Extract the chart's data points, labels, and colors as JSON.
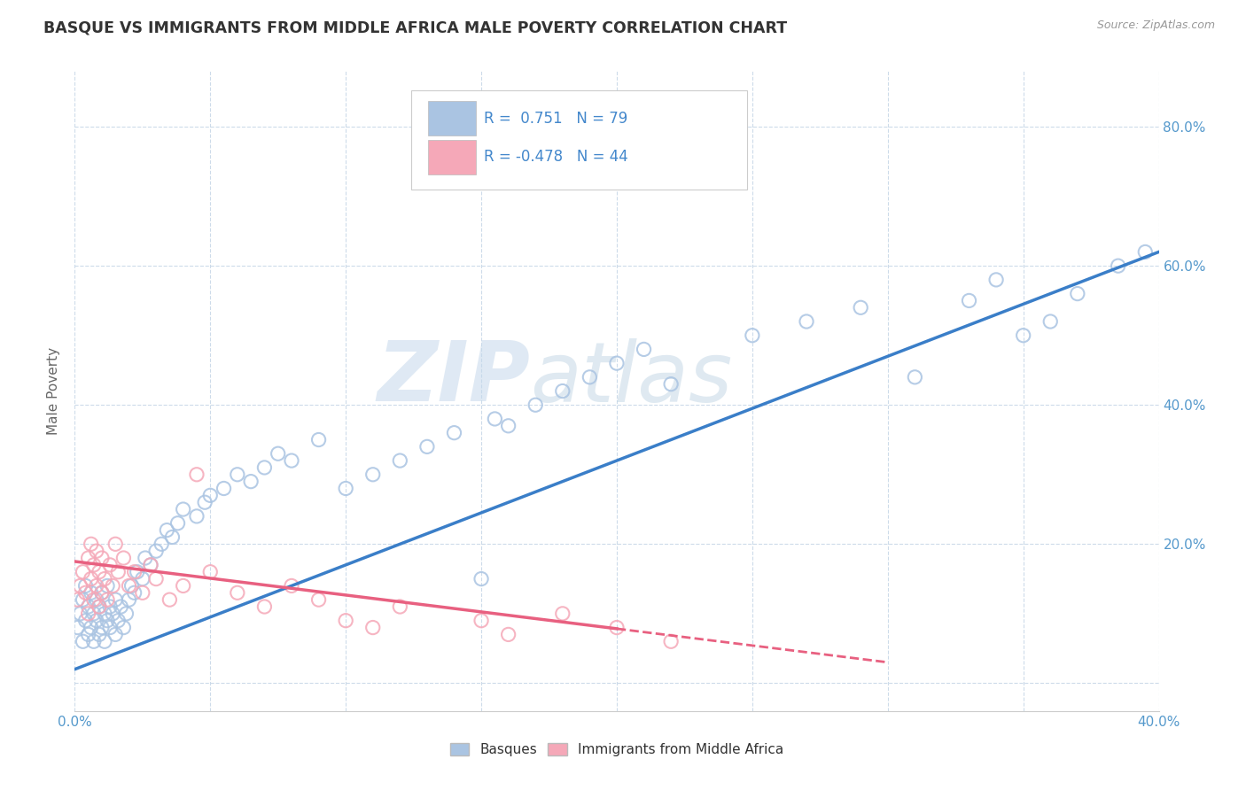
{
  "title": "BASQUE VS IMMIGRANTS FROM MIDDLE AFRICA MALE POVERTY CORRELATION CHART",
  "source": "Source: ZipAtlas.com",
  "ylabel": "Male Poverty",
  "xlim": [
    0.0,
    0.4
  ],
  "ylim": [
    -0.04,
    0.88
  ],
  "r_blue": 0.751,
  "n_blue": 79,
  "r_pink": -0.478,
  "n_pink": 44,
  "blue_color": "#aac4e2",
  "pink_color": "#f5a8b8",
  "blue_line_color": "#3a7ec8",
  "pink_line_color": "#e86080",
  "watermark_zip": "ZIP",
  "watermark_atlas": "atlas",
  "legend_blue_label": "Basques",
  "legend_pink_label": "Immigrants from Middle Africa",
  "blue_line_x0": 0.0,
  "blue_line_y0": 0.02,
  "blue_line_x1": 0.4,
  "blue_line_y1": 0.62,
  "pink_line_x0": 0.0,
  "pink_line_y0": 0.175,
  "pink_line_x1": 0.3,
  "pink_line_y1": 0.03,
  "pink_line_dash_x0": 0.2,
  "pink_line_dash_x1": 0.35,
  "blue_scatter_x": [
    0.001,
    0.002,
    0.003,
    0.003,
    0.004,
    0.004,
    0.005,
    0.005,
    0.006,
    0.006,
    0.007,
    0.007,
    0.008,
    0.008,
    0.009,
    0.009,
    0.01,
    0.01,
    0.011,
    0.011,
    0.012,
    0.012,
    0.013,
    0.013,
    0.014,
    0.015,
    0.015,
    0.016,
    0.017,
    0.018,
    0.019,
    0.02,
    0.021,
    0.022,
    0.023,
    0.025,
    0.026,
    0.028,
    0.03,
    0.032,
    0.034,
    0.036,
    0.038,
    0.04,
    0.045,
    0.048,
    0.05,
    0.055,
    0.06,
    0.065,
    0.07,
    0.075,
    0.08,
    0.09,
    0.1,
    0.11,
    0.12,
    0.13,
    0.14,
    0.15,
    0.155,
    0.16,
    0.17,
    0.18,
    0.19,
    0.2,
    0.21,
    0.22,
    0.25,
    0.27,
    0.29,
    0.31,
    0.33,
    0.34,
    0.35,
    0.36,
    0.37,
    0.385,
    0.395
  ],
  "blue_scatter_y": [
    0.08,
    0.1,
    0.06,
    0.12,
    0.09,
    0.14,
    0.07,
    0.11,
    0.08,
    0.13,
    0.06,
    0.1,
    0.09,
    0.12,
    0.07,
    0.11,
    0.08,
    0.13,
    0.06,
    0.1,
    0.09,
    0.14,
    0.08,
    0.11,
    0.1,
    0.07,
    0.12,
    0.09,
    0.11,
    0.08,
    0.1,
    0.12,
    0.14,
    0.13,
    0.16,
    0.15,
    0.18,
    0.17,
    0.19,
    0.2,
    0.22,
    0.21,
    0.23,
    0.25,
    0.24,
    0.26,
    0.27,
    0.28,
    0.3,
    0.29,
    0.31,
    0.33,
    0.32,
    0.35,
    0.28,
    0.3,
    0.32,
    0.34,
    0.36,
    0.15,
    0.38,
    0.37,
    0.4,
    0.42,
    0.44,
    0.46,
    0.48,
    0.43,
    0.5,
    0.52,
    0.54,
    0.44,
    0.55,
    0.58,
    0.5,
    0.52,
    0.56,
    0.6,
    0.62
  ],
  "pink_scatter_x": [
    0.001,
    0.002,
    0.003,
    0.004,
    0.005,
    0.005,
    0.006,
    0.006,
    0.007,
    0.007,
    0.008,
    0.008,
    0.009,
    0.009,
    0.01,
    0.01,
    0.011,
    0.012,
    0.013,
    0.014,
    0.015,
    0.016,
    0.018,
    0.02,
    0.022,
    0.025,
    0.028,
    0.03,
    0.035,
    0.04,
    0.045,
    0.05,
    0.06,
    0.07,
    0.08,
    0.09,
    0.1,
    0.11,
    0.12,
    0.15,
    0.16,
    0.18,
    0.2,
    0.22
  ],
  "pink_scatter_y": [
    0.12,
    0.14,
    0.16,
    0.13,
    0.18,
    0.1,
    0.15,
    0.2,
    0.12,
    0.17,
    0.14,
    0.19,
    0.11,
    0.16,
    0.13,
    0.18,
    0.15,
    0.12,
    0.17,
    0.14,
    0.2,
    0.16,
    0.18,
    0.14,
    0.16,
    0.13,
    0.17,
    0.15,
    0.12,
    0.14,
    0.3,
    0.16,
    0.13,
    0.11,
    0.14,
    0.12,
    0.09,
    0.08,
    0.11,
    0.09,
    0.07,
    0.1,
    0.08,
    0.06
  ]
}
